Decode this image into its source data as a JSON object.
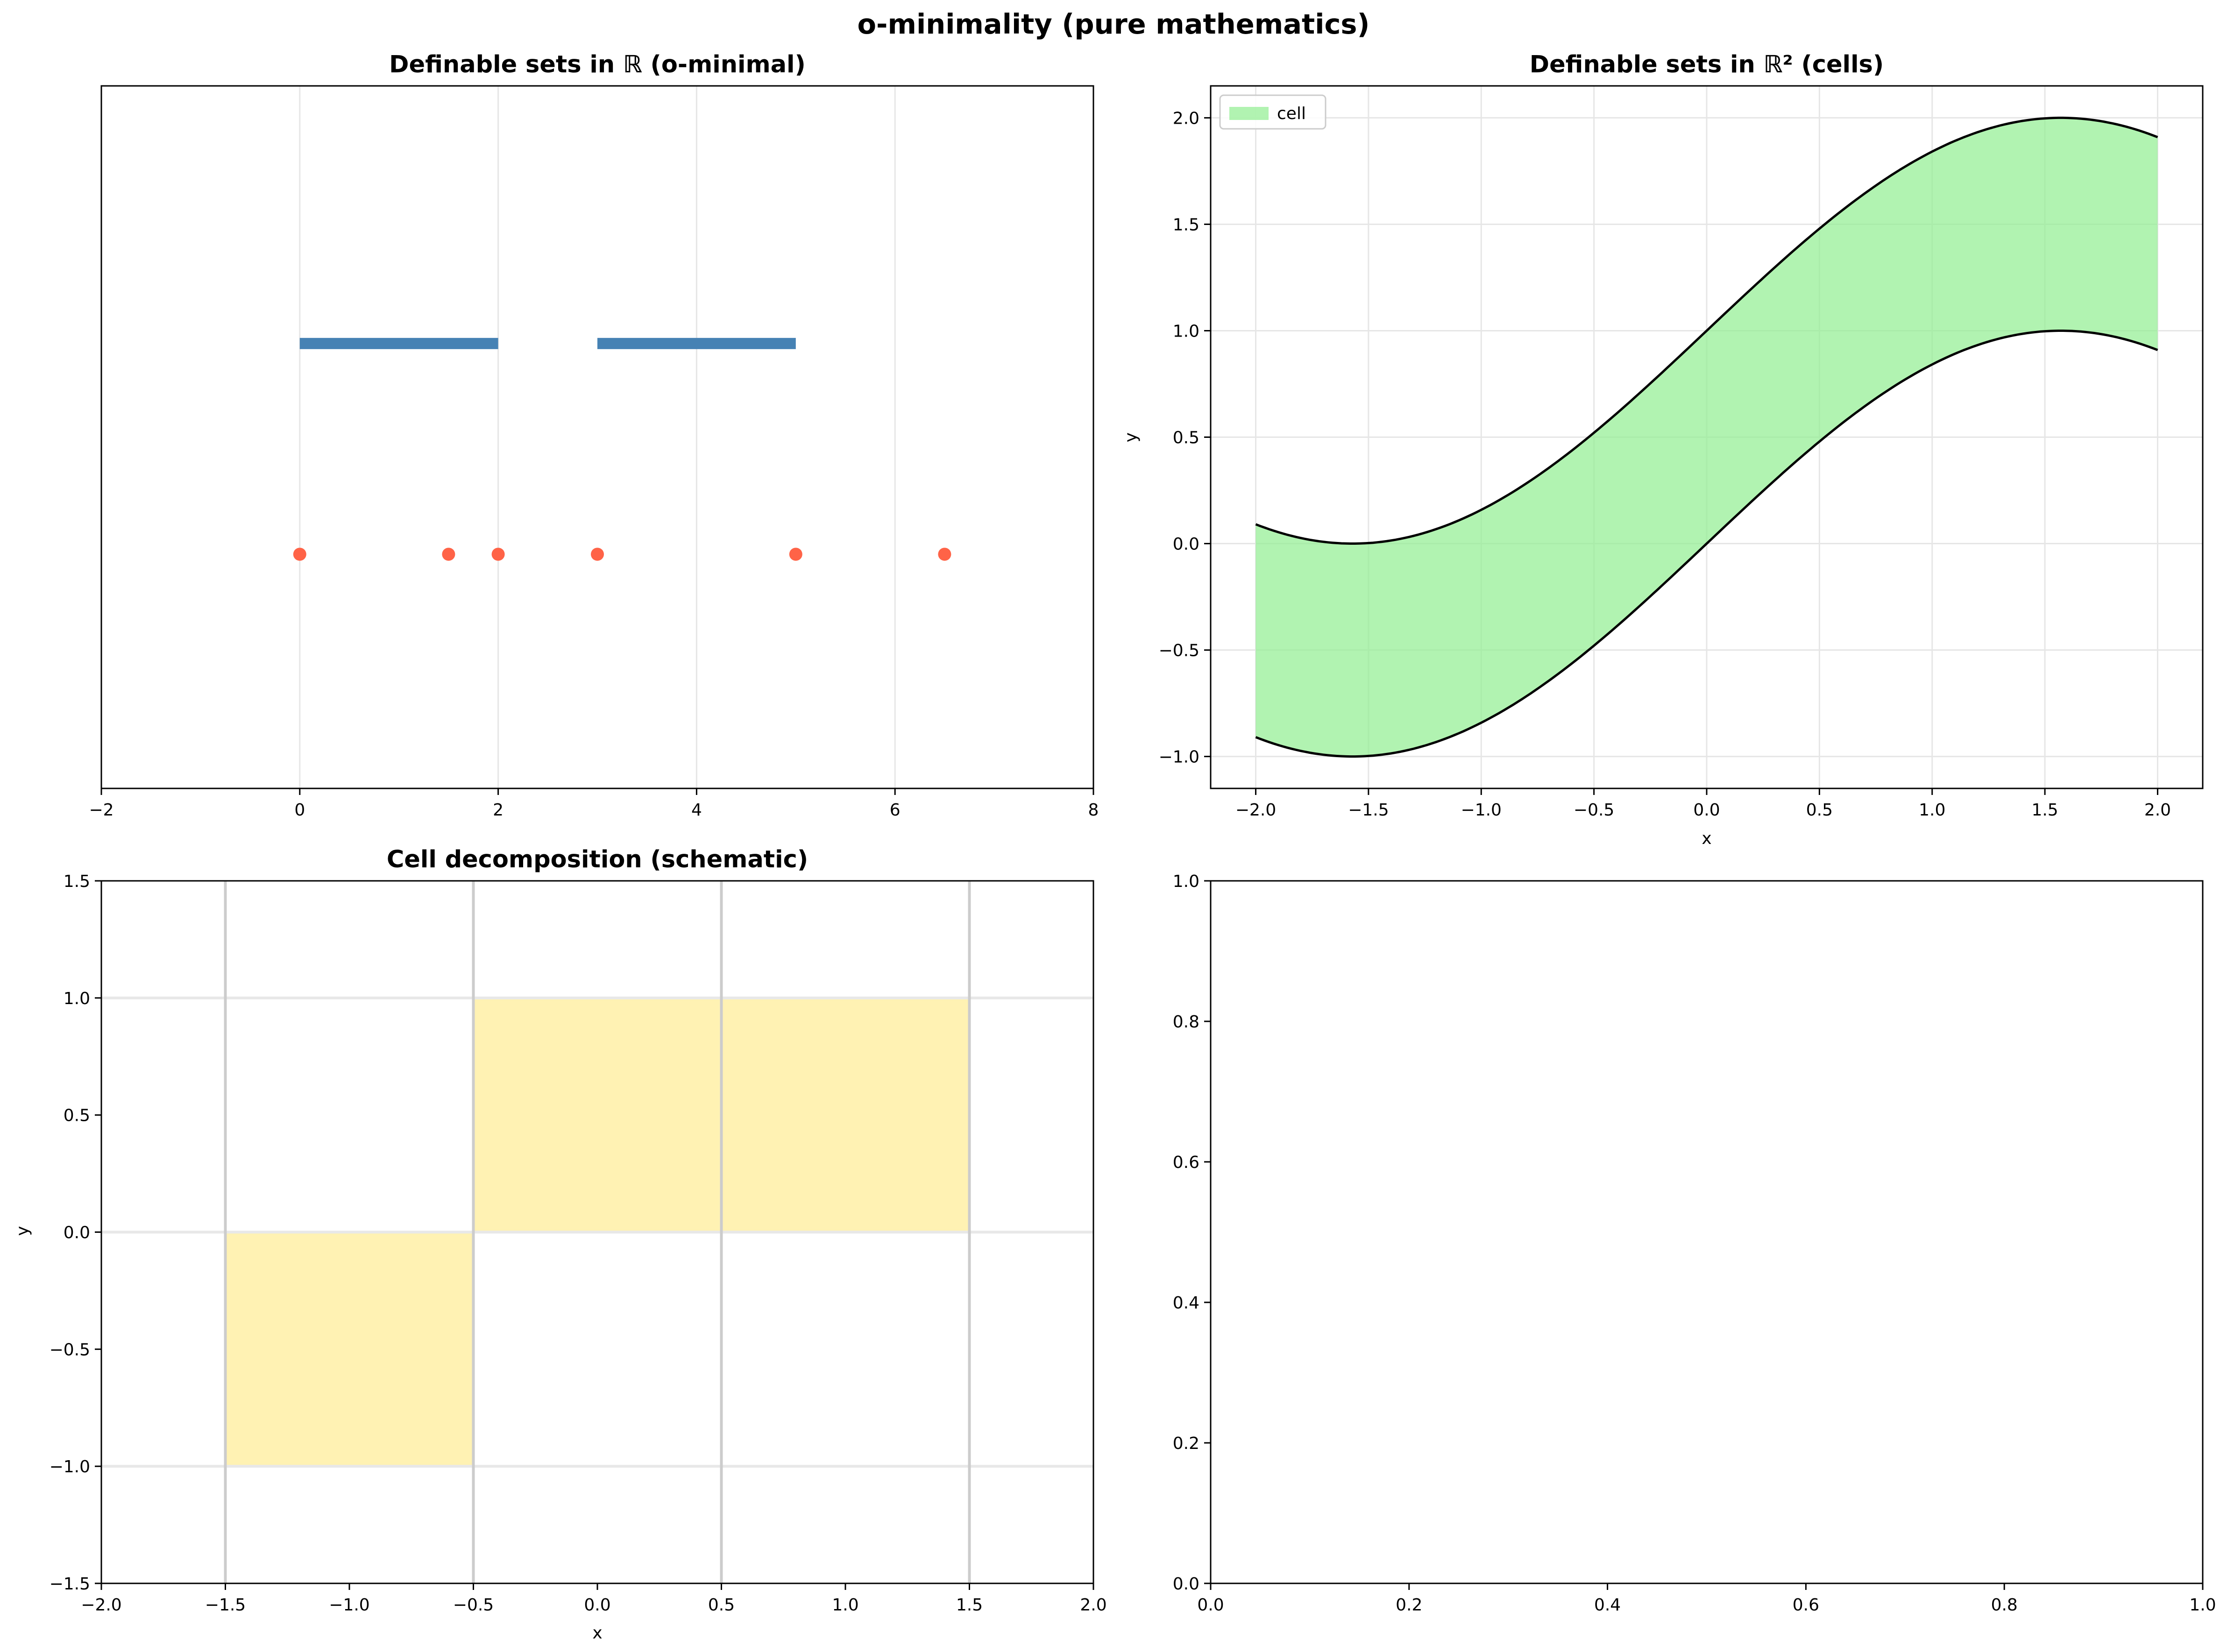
{
  "figure": {
    "title": "o-minimality (pure mathematics)"
  },
  "colors": {
    "interval": "#4682b4",
    "point": "#ff6347",
    "cell_fill": "#90ee90",
    "cell_line": "#000000",
    "decomp_fill": "#fff2b3",
    "decomp_line": "#cccccc",
    "grid": "#e6e6e6"
  },
  "chart_data": [
    {
      "id": "p1",
      "type": "scatter",
      "title": "Definable sets in ℝ (o-minimal)",
      "xlabel": "",
      "ylabel": "",
      "xlim": [
        -2,
        8
      ],
      "ylim": [
        -0.3,
        1.2
      ],
      "xticks": [
        -2,
        0,
        2,
        4,
        6,
        8
      ],
      "yticks": [],
      "grid": true,
      "intervals": [
        {
          "start": 0,
          "end": 2,
          "y": 0.65
        },
        {
          "start": 3,
          "end": 5,
          "y": 0.65
        }
      ],
      "points": {
        "x": [
          0,
          1.5,
          2,
          3,
          5,
          6.5
        ],
        "y": [
          0.2,
          0.2,
          0.2,
          0.2,
          0.2,
          0.2
        ]
      }
    },
    {
      "id": "p2",
      "type": "area",
      "title": "Definable sets in ℝ² (cells)",
      "xlabel": "x",
      "ylabel": "y",
      "xlim": [
        -2.2,
        2.2
      ],
      "ylim": [
        -1.15,
        2.15
      ],
      "xticks": [
        -2.0,
        -1.5,
        -1.0,
        -0.5,
        0.0,
        0.5,
        1.0,
        1.5,
        2.0
      ],
      "yticks": [
        -1.0,
        -0.5,
        0.0,
        0.5,
        1.0,
        1.5,
        2.0
      ],
      "grid": true,
      "legend": {
        "position": "upper-left",
        "entries": [
          "cell"
        ]
      },
      "series": [
        {
          "role": "lower",
          "function": "sin(x)",
          "x_range": [
            -2,
            2
          ]
        },
        {
          "role": "upper",
          "function": "sin(x) + 1",
          "x_range": [
            -2,
            2
          ]
        }
      ]
    },
    {
      "id": "p3",
      "type": "heatmap",
      "title": "Cell decomposition (schematic)",
      "xlabel": "x",
      "ylabel": "y",
      "xlim": [
        -2.0,
        2.0
      ],
      "ylim": [
        -1.5,
        1.5
      ],
      "xticks": [
        -2.0,
        -1.5,
        -1.0,
        -0.5,
        0.0,
        0.5,
        1.0,
        1.5,
        2.0
      ],
      "yticks": [
        -1.5,
        -1.0,
        -0.5,
        0.0,
        0.5,
        1.0,
        1.5
      ],
      "grid": false,
      "vlines": [
        -1.5,
        -0.5,
        0.5,
        1.5
      ],
      "hlines": [
        -1.0,
        0.0,
        1.0
      ],
      "cells": [
        {
          "x": [
            -1.5,
            -0.5
          ],
          "y": [
            -1.0,
            0.0
          ]
        },
        {
          "x": [
            -0.5,
            0.5
          ],
          "y": [
            0.0,
            1.0
          ]
        },
        {
          "x": [
            0.5,
            1.5
          ],
          "y": [
            0.0,
            1.0
          ]
        }
      ]
    },
    {
      "id": "p4",
      "type": "scatter",
      "title": "",
      "xlabel": "",
      "ylabel": "",
      "xlim": [
        0.0,
        1.0
      ],
      "ylim": [
        0.0,
        1.0
      ],
      "xticks": [
        0.0,
        0.2,
        0.4,
        0.6,
        0.8,
        1.0
      ],
      "yticks": [
        0.0,
        0.2,
        0.4,
        0.6,
        0.8,
        1.0
      ],
      "grid": false
    }
  ]
}
